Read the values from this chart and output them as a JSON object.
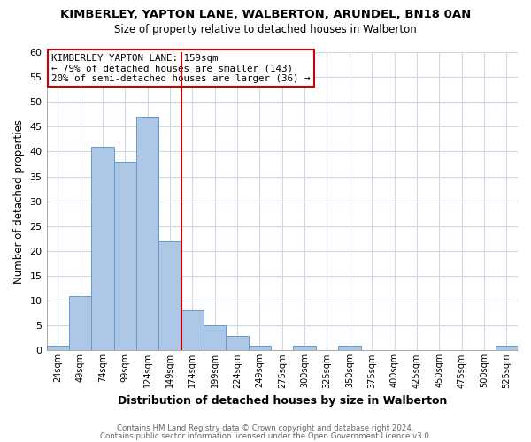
{
  "title": "KIMBERLEY, YAPTON LANE, WALBERTON, ARUNDEL, BN18 0AN",
  "subtitle": "Size of property relative to detached houses in Walberton",
  "xlabel": "Distribution of detached houses by size in Walberton",
  "ylabel": "Number of detached properties",
  "bin_labels": [
    "24sqm",
    "49sqm",
    "74sqm",
    "99sqm",
    "124sqm",
    "149sqm",
    "174sqm",
    "199sqm",
    "224sqm",
    "249sqm",
    "275sqm",
    "300sqm",
    "325sqm",
    "350sqm",
    "375sqm",
    "400sqm",
    "425sqm",
    "450sqm",
    "475sqm",
    "500sqm",
    "525sqm"
  ],
  "counts": [
    1,
    11,
    41,
    38,
    47,
    22,
    8,
    5,
    3,
    1,
    0,
    1,
    0,
    1,
    0,
    0,
    0,
    0,
    0,
    0,
    1
  ],
  "bar_color": "#adc8e6",
  "bar_edge_color": "#6699cc",
  "property_line_color": "#cc0000",
  "property_line_bin": 5,
  "annotation_title": "KIMBERLEY YAPTON LANE: 159sqm",
  "annotation_line1": "← 79% of detached houses are smaller (143)",
  "annotation_line2": "20% of semi-detached houses are larger (36) →",
  "annotation_box_color": "#cc0000",
  "ylim": [
    0,
    60
  ],
  "yticks": [
    0,
    5,
    10,
    15,
    20,
    25,
    30,
    35,
    40,
    45,
    50,
    55,
    60
  ],
  "footer_line1": "Contains HM Land Registry data © Crown copyright and database right 2024.",
  "footer_line2": "Contains public sector information licensed under the Open Government Licence v3.0.",
  "background_color": "#ffffff",
  "grid_color": "#ccd9e8"
}
